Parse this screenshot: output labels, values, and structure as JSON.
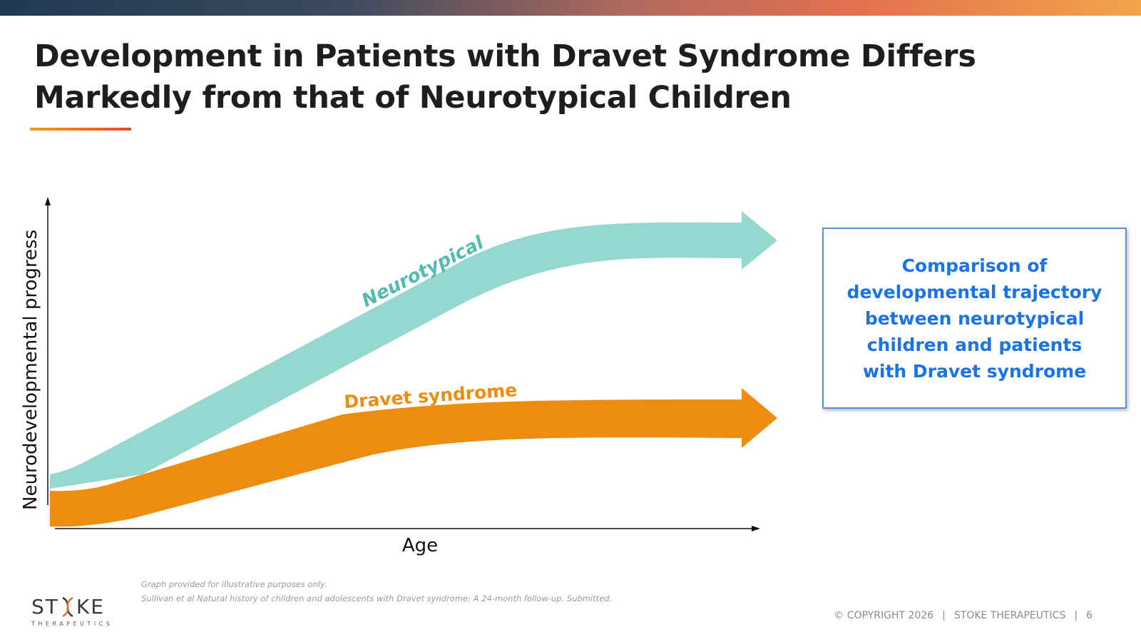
{
  "slide": {
    "title_line1": "Development in Patients with Dravet Syndrome Differs",
    "title_line2": "Markedly from that of Neurotypical Children",
    "page_number": "6"
  },
  "diagram": {
    "y_axis_label": "Neurodevelopmental  progress",
    "x_axis_label": "Age",
    "bands": [
      {
        "label": "Neurotypical",
        "color": "#95d8cf",
        "label_color": "#52bbb0"
      },
      {
        "label": "Dravet syndrome",
        "color": "#ee8c12",
        "label_color": "#ee8c12"
      }
    ]
  },
  "callout": {
    "text": "Comparison of developmental trajectory between neurotypical children and patients with Dravet syndrome"
  },
  "footnotes": {
    "line1": "Graph provided for illustrative purposes only.",
    "line2": "Sullivan et al Natural history of children and adolescents with Dravet syndrome: A 24-month follow-up. Submitted."
  },
  "footer": {
    "copyright": "© COPYRIGHT 2026",
    "company": "STOKE THERAPEUTICS"
  },
  "logo": {
    "word_left": "ST",
    "word_right": "KE",
    "subtitle": "THERAPEUTICS"
  }
}
